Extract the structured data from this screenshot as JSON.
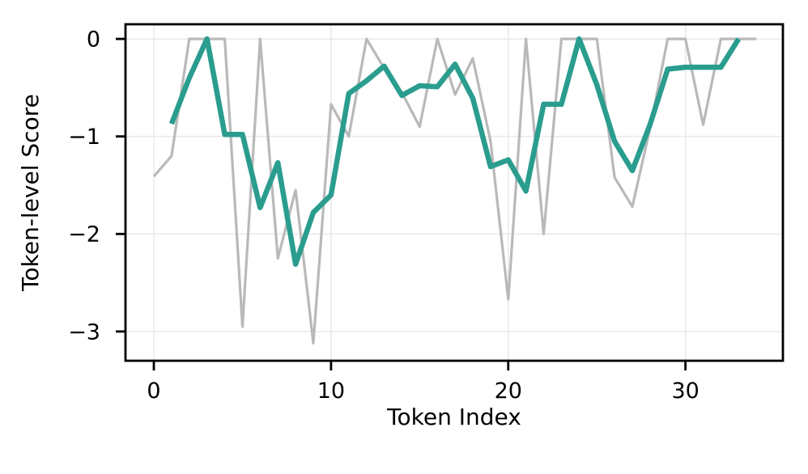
{
  "figure": {
    "background": "#ffffff"
  },
  "chart_data": {
    "type": "line",
    "title": "",
    "xlabel": "Token Index",
    "ylabel": "Token-level Score",
    "xlim": [
      -1.6,
      35.5
    ],
    "ylim": [
      -3.3,
      0.15
    ],
    "grid": true,
    "legend_position": "none",
    "axis_color": "#000000",
    "grid_color": "#e9e9e9",
    "x_ticks": [
      {
        "value": 0,
        "label": "0"
      },
      {
        "value": 10,
        "label": "10"
      },
      {
        "value": 20,
        "label": "20"
      },
      {
        "value": 30,
        "label": "30"
      }
    ],
    "y_ticks": [
      {
        "value": 0,
        "label": "0"
      },
      {
        "value": -1,
        "label": "−1"
      },
      {
        "value": -2,
        "label": "−2"
      },
      {
        "value": -3,
        "label": "−3"
      }
    ],
    "series": [
      {
        "id": "raw-token-scores",
        "description": "per-token score",
        "color": "#b9b9b9",
        "line_width": 3.2,
        "x_start": 0,
        "values": [
          -1.41,
          -1.2,
          0,
          0,
          0,
          -2.95,
          0,
          -2.25,
          -1.55,
          -3.12,
          -0.67,
          -1.0,
          0,
          -0.3,
          -0.55,
          -0.9,
          0,
          -0.57,
          -0.2,
          -1.05,
          -2.67,
          0,
          -2.0,
          0,
          0,
          0,
          -1.42,
          -1.72,
          -0.92,
          0,
          0,
          -0.88,
          0,
          0,
          0
        ]
      },
      {
        "id": "smoothed-token-scores",
        "description": "3-point moving average of per-token score",
        "color": "#2a9d8f",
        "line_width": 6.5,
        "x_start": 1,
        "values": [
          -0.87,
          -0.4,
          0,
          -0.98,
          -0.98,
          -1.73,
          -1.27,
          -2.31,
          -1.78,
          -1.6,
          -0.56,
          -0.43,
          -0.28,
          -0.58,
          -0.48,
          -0.49,
          -0.26,
          -0.61,
          -1.31,
          -1.24,
          -1.56,
          -0.67,
          -0.67,
          0,
          -0.47,
          -1.05,
          -1.35,
          -0.88,
          -0.31,
          -0.29,
          -0.29,
          -0.29,
          0
        ]
      }
    ]
  }
}
